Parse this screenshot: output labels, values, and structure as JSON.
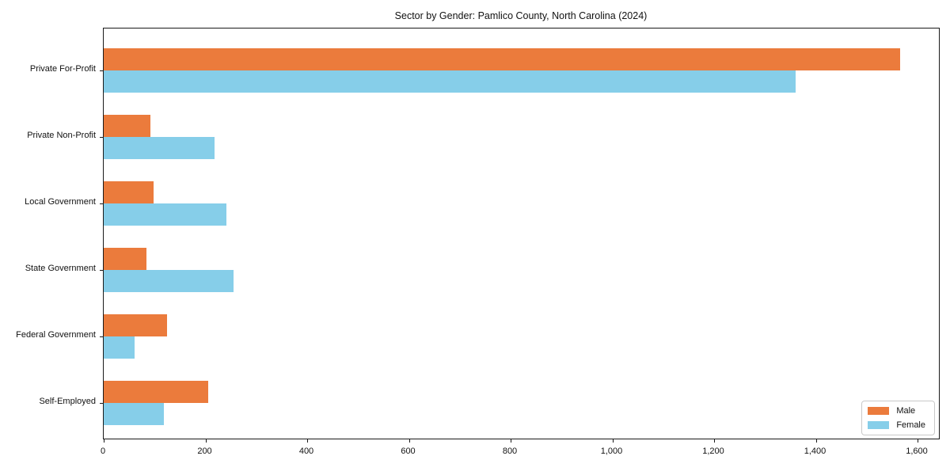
{
  "title": "Sector by Gender: Pamlico County, North Carolina (2024)",
  "legend": {
    "items": [
      {
        "label": "Male",
        "color": "#eb7b3c"
      },
      {
        "label": "Female",
        "color": "#86cee9"
      }
    ],
    "position": "lower right"
  },
  "chart_data": {
    "type": "bar",
    "orientation": "horizontal",
    "title": "Sector by Gender: Pamlico County, North Carolina (2024)",
    "xlabel": "",
    "ylabel": "",
    "categories": [
      "Private For-Profit",
      "Private Non-Profit",
      "Local Government",
      "State Government",
      "Federal Government",
      "Self-Employed"
    ],
    "series": [
      {
        "name": "Male",
        "color": "#eb7b3c",
        "values": [
          1565,
          92,
          98,
          84,
          124,
          206
        ]
      },
      {
        "name": "Female",
        "color": "#86cee9",
        "values": [
          1360,
          218,
          242,
          256,
          61,
          119
        ]
      }
    ],
    "xlim": [
      0,
      1642
    ],
    "x_ticks": [
      0,
      200,
      400,
      600,
      800,
      1000,
      1200,
      1400,
      1600
    ],
    "x_tick_labels": [
      "0",
      "200",
      "400",
      "600",
      "800",
      "1,000",
      "1,200",
      "1,400",
      "1,600"
    ],
    "grid": false,
    "legend_position": "lower right"
  }
}
